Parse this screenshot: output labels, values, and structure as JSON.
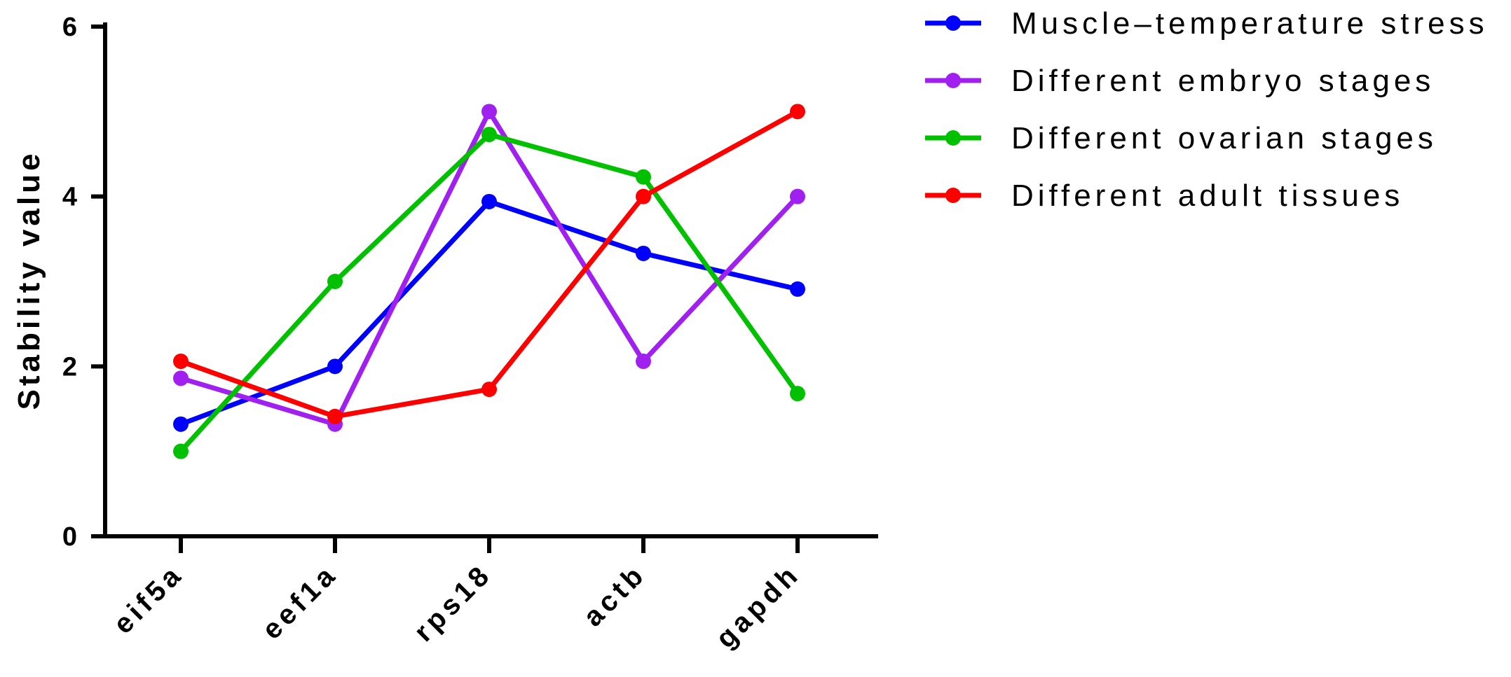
{
  "chart_data": {
    "type": "line",
    "title": "",
    "xlabel": "",
    "ylabel": "Stability value",
    "categories": [
      "eif5a",
      "eef1a",
      "rps18",
      "actb",
      "gapdh"
    ],
    "ylim": [
      0,
      6
    ],
    "yticks": [
      0,
      2,
      4,
      6
    ],
    "grid": false,
    "legend_position": "top-right",
    "series": [
      {
        "name": "Muscle–temperature stress",
        "color": "#0000ff",
        "values": [
          1.32,
          2.0,
          3.94,
          3.33,
          2.91
        ]
      },
      {
        "name": "Different embryo stages",
        "color": "#a020f0",
        "values": [
          1.86,
          1.32,
          5.0,
          2.06,
          4.0
        ]
      },
      {
        "name": "Different ovarian stages",
        "color": "#00c000",
        "values": [
          1.0,
          3.0,
          4.73,
          4.23,
          1.68
        ]
      },
      {
        "name": "Different adult tissues",
        "color": "#ff0000",
        "values": [
          2.06,
          1.41,
          1.73,
          4.0,
          5.0
        ]
      }
    ]
  }
}
